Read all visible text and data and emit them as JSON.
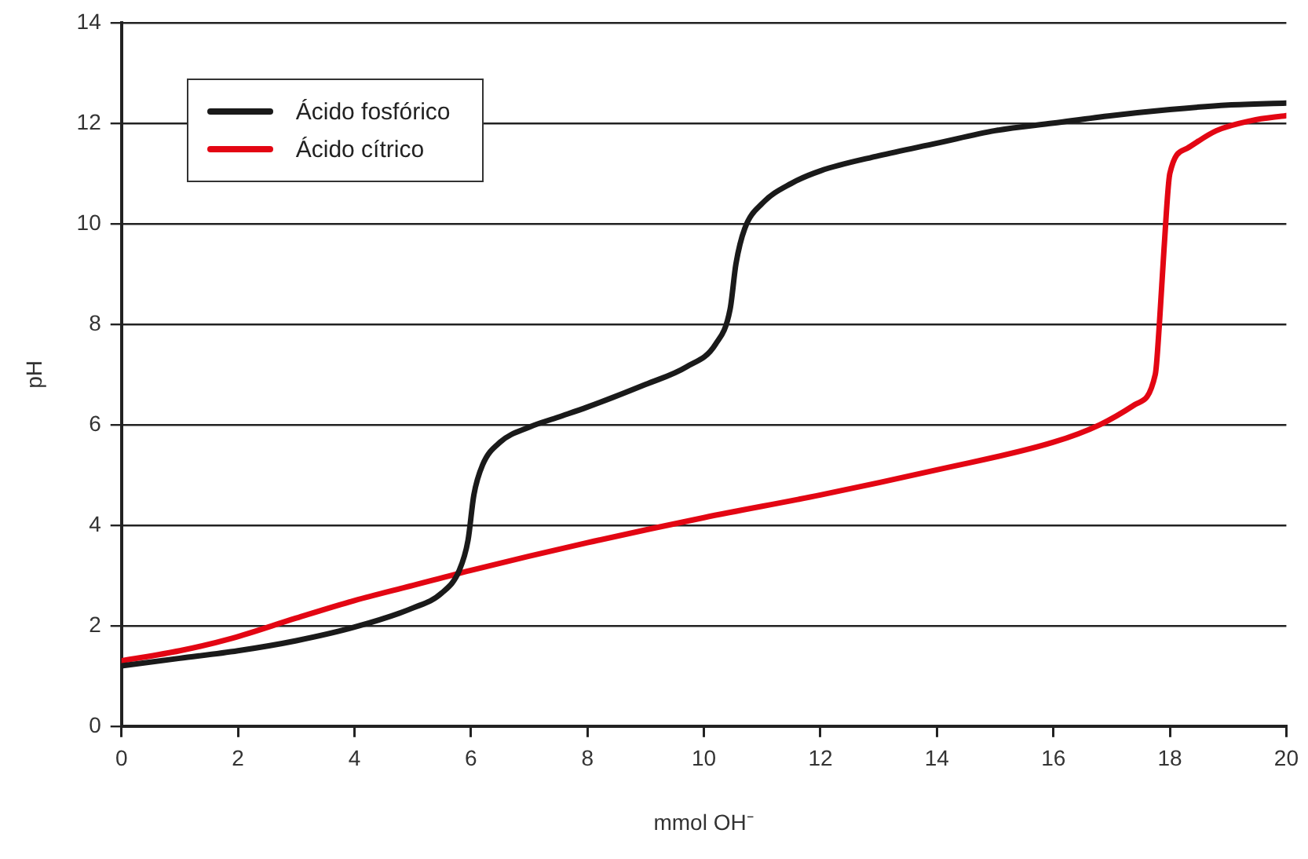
{
  "chart_data": {
    "type": "line",
    "xlabel": "mmol OH⁻",
    "ylabel": "pH",
    "xlim": [
      0,
      20
    ],
    "xticks": [
      0,
      2,
      4,
      6,
      8,
      10,
      12,
      14,
      16,
      18,
      20
    ],
    "ylim": [
      0,
      14
    ],
    "yticks": [
      0,
      2,
      4,
      6,
      8,
      10,
      12,
      14
    ],
    "grid": "y",
    "legend": "top left",
    "marker": "none",
    "line_style": "solid",
    "series": [
      {
        "name": "Ácido fosfórico",
        "color": "#1a1a1a",
        "x": [
          0,
          1,
          2,
          3,
          4,
          5,
          5.5,
          5.8,
          5.95,
          6.05,
          6.2,
          6.5,
          7,
          7.5,
          8,
          9,
          9.7,
          10.2,
          10.45,
          10.55,
          10.7,
          11,
          11.5,
          12,
          13,
          14,
          15,
          16,
          17,
          18,
          19,
          20
        ],
        "values": [
          1.2,
          1.35,
          1.5,
          1.7,
          1.97,
          2.35,
          2.65,
          3.1,
          3.7,
          4.6,
          5.2,
          5.65,
          5.95,
          6.15,
          6.35,
          6.8,
          7.15,
          7.6,
          8.3,
          9.2,
          9.9,
          10.4,
          10.8,
          11.05,
          11.35,
          11.6,
          11.85,
          12.0,
          12.15,
          12.27,
          12.36,
          12.4
        ]
      },
      {
        "name": "Ácido cítrico",
        "color": "#e30613",
        "x": [
          0,
          1,
          1.9,
          3,
          4,
          5,
          6,
          8,
          10,
          12,
          14,
          16,
          16.8,
          17.4,
          17.75,
          17.82,
          17.9,
          18.0,
          18.3,
          18.8,
          19.4,
          20
        ],
        "values": [
          1.3,
          1.5,
          1.75,
          2.15,
          2.5,
          2.8,
          3.1,
          3.65,
          4.15,
          4.6,
          5.1,
          5.65,
          6.0,
          6.4,
          7.0,
          8.0,
          9.5,
          11.0,
          11.5,
          11.85,
          12.05,
          12.15
        ]
      }
    ]
  }
}
